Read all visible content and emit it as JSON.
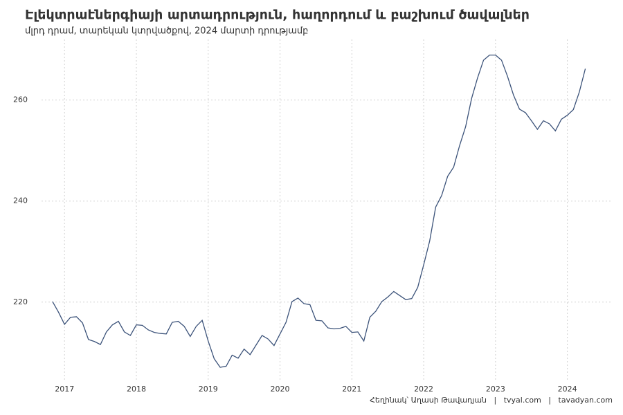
{
  "chart_data": {
    "type": "line",
    "title": "Էլեկտրաէներգիայի արտադրություն, հաղորդում և բաշխում ծավալներ",
    "subtitle": "մլրդ դրամ, տարեկան կտրվածքով, 2024 մարտի դրությամբ",
    "caption": "Հեղինակ՝ Աղասի Թավադյան   |   tvyal.com   |   tavadyan.com",
    "x": [
      "2016-11",
      "2016-12",
      "2017-01",
      "2017-02",
      "2017-03",
      "2017-04",
      "2017-05",
      "2017-06",
      "2017-07",
      "2017-08",
      "2017-09",
      "2017-10",
      "2017-11",
      "2017-12",
      "2018-01",
      "2018-02",
      "2018-03",
      "2018-04",
      "2018-05",
      "2018-06",
      "2018-07",
      "2018-08",
      "2018-09",
      "2018-10",
      "2018-11",
      "2018-12",
      "2019-01",
      "2019-02",
      "2019-03",
      "2019-04",
      "2019-05",
      "2019-06",
      "2019-07",
      "2019-08",
      "2019-09",
      "2019-10",
      "2019-11",
      "2019-12",
      "2020-01",
      "2020-02",
      "2020-03",
      "2020-04",
      "2020-05",
      "2020-06",
      "2020-07",
      "2020-08",
      "2020-09",
      "2020-10",
      "2020-11",
      "2020-12",
      "2021-01",
      "2021-02",
      "2021-03",
      "2021-04",
      "2021-05",
      "2021-06",
      "2021-07",
      "2021-08",
      "2021-09",
      "2021-10",
      "2021-11",
      "2021-12",
      "2022-01",
      "2022-02",
      "2022-03",
      "2022-04",
      "2022-05",
      "2022-06",
      "2022-07",
      "2022-08",
      "2022-09",
      "2022-10",
      "2022-11",
      "2022-12",
      "2023-01",
      "2023-02",
      "2023-03",
      "2023-04",
      "2023-05",
      "2023-06",
      "2023-07",
      "2023-08",
      "2023-09",
      "2023-10",
      "2023-11",
      "2023-12",
      "2024-01",
      "2024-02",
      "2024-03",
      "2024-04"
    ],
    "values": [
      220.1,
      218,
      215.6,
      217,
      217.1,
      215.9,
      212.6,
      212.2,
      211.6,
      214.1,
      215.5,
      216.2,
      214.1,
      213.4,
      215.5,
      215.4,
      214.5,
      214,
      213.8,
      213.7,
      216,
      216.2,
      215.2,
      213.2,
      215.2,
      216.4,
      212.3,
      208.8,
      207.1,
      207.3,
      209.5,
      208.9,
      210.7,
      209.6,
      211.5,
      213.4,
      212.7,
      211.4,
      213.7,
      216,
      220.1,
      220.8,
      219.7,
      219.5,
      216.4,
      216.3,
      214.9,
      214.7,
      214.8,
      215.2,
      214,
      214.1,
      212.3,
      217,
      218.2,
      220.1,
      221,
      222.1,
      221.3,
      220.5,
      220.7,
      222.9,
      227.4,
      232.1,
      238.8,
      241.1,
      244.9,
      246.7,
      251,
      254.7,
      260.3,
      264.4,
      267.9,
      268.9,
      268.9,
      267.9,
      264.7,
      261,
      258.2,
      257.5,
      255.9,
      254.2,
      255.9,
      255.3,
      253.9,
      256.2,
      257,
      258.1,
      261.6,
      266.2
    ],
    "color": "#3b5279",
    "xlim": [
      2016.68,
      2024.63
    ],
    "xticks": [
      2017,
      2018,
      2019,
      2020,
      2021,
      2022,
      2023,
      2024
    ],
    "ylim": [
      204.5,
      272
    ],
    "yticks": [
      220,
      240,
      260
    ],
    "grid": true
  }
}
